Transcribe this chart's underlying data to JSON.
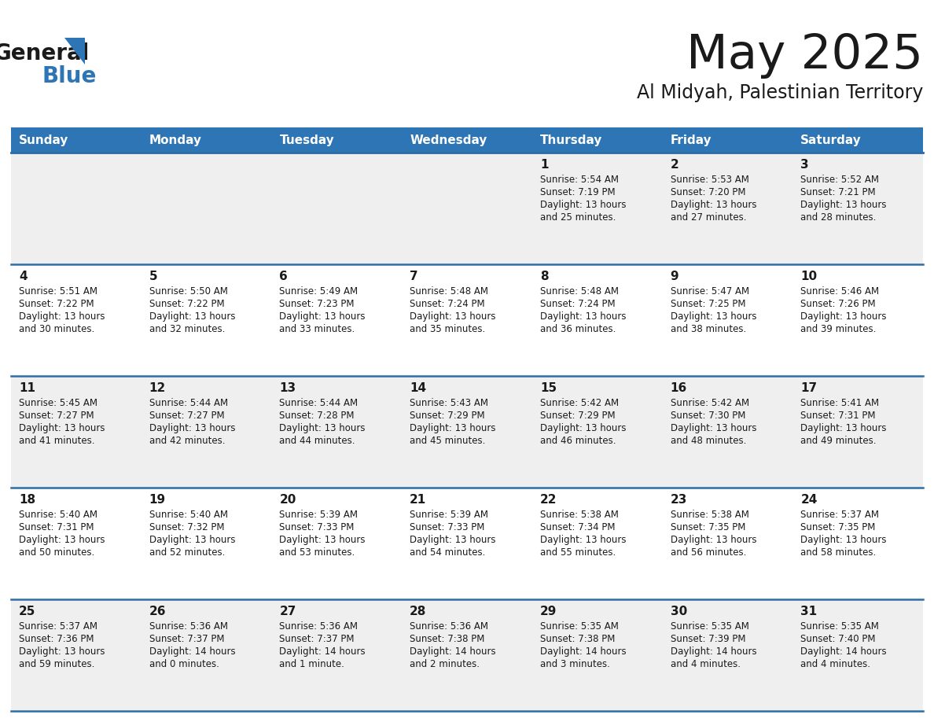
{
  "title": "May 2025",
  "subtitle": "Al Midyah, Palestinian Territory",
  "header_bg": "#2E75B6",
  "header_text_color": "#FFFFFF",
  "row_bg_odd": "#EFEFEF",
  "row_bg_even": "#FFFFFF",
  "separator_color": "#2E6DA4",
  "text_color": "#1a1a1a",
  "day_names": [
    "Sunday",
    "Monday",
    "Tuesday",
    "Wednesday",
    "Thursday",
    "Friday",
    "Saturday"
  ],
  "weeks": [
    [
      {
        "day": null
      },
      {
        "day": null
      },
      {
        "day": null
      },
      {
        "day": null
      },
      {
        "day": 1,
        "sunrise": "5:54 AM",
        "sunset": "7:19 PM",
        "daylight": "13 hours\nand 25 minutes."
      },
      {
        "day": 2,
        "sunrise": "5:53 AM",
        "sunset": "7:20 PM",
        "daylight": "13 hours\nand 27 minutes."
      },
      {
        "day": 3,
        "sunrise": "5:52 AM",
        "sunset": "7:21 PM",
        "daylight": "13 hours\nand 28 minutes."
      }
    ],
    [
      {
        "day": 4,
        "sunrise": "5:51 AM",
        "sunset": "7:22 PM",
        "daylight": "13 hours\nand 30 minutes."
      },
      {
        "day": 5,
        "sunrise": "5:50 AM",
        "sunset": "7:22 PM",
        "daylight": "13 hours\nand 32 minutes."
      },
      {
        "day": 6,
        "sunrise": "5:49 AM",
        "sunset": "7:23 PM",
        "daylight": "13 hours\nand 33 minutes."
      },
      {
        "day": 7,
        "sunrise": "5:48 AM",
        "sunset": "7:24 PM",
        "daylight": "13 hours\nand 35 minutes."
      },
      {
        "day": 8,
        "sunrise": "5:48 AM",
        "sunset": "7:24 PM",
        "daylight": "13 hours\nand 36 minutes."
      },
      {
        "day": 9,
        "sunrise": "5:47 AM",
        "sunset": "7:25 PM",
        "daylight": "13 hours\nand 38 minutes."
      },
      {
        "day": 10,
        "sunrise": "5:46 AM",
        "sunset": "7:26 PM",
        "daylight": "13 hours\nand 39 minutes."
      }
    ],
    [
      {
        "day": 11,
        "sunrise": "5:45 AM",
        "sunset": "7:27 PM",
        "daylight": "13 hours\nand 41 minutes."
      },
      {
        "day": 12,
        "sunrise": "5:44 AM",
        "sunset": "7:27 PM",
        "daylight": "13 hours\nand 42 minutes."
      },
      {
        "day": 13,
        "sunrise": "5:44 AM",
        "sunset": "7:28 PM",
        "daylight": "13 hours\nand 44 minutes."
      },
      {
        "day": 14,
        "sunrise": "5:43 AM",
        "sunset": "7:29 PM",
        "daylight": "13 hours\nand 45 minutes."
      },
      {
        "day": 15,
        "sunrise": "5:42 AM",
        "sunset": "7:29 PM",
        "daylight": "13 hours\nand 46 minutes."
      },
      {
        "day": 16,
        "sunrise": "5:42 AM",
        "sunset": "7:30 PM",
        "daylight": "13 hours\nand 48 minutes."
      },
      {
        "day": 17,
        "sunrise": "5:41 AM",
        "sunset": "7:31 PM",
        "daylight": "13 hours\nand 49 minutes."
      }
    ],
    [
      {
        "day": 18,
        "sunrise": "5:40 AM",
        "sunset": "7:31 PM",
        "daylight": "13 hours\nand 50 minutes."
      },
      {
        "day": 19,
        "sunrise": "5:40 AM",
        "sunset": "7:32 PM",
        "daylight": "13 hours\nand 52 minutes."
      },
      {
        "day": 20,
        "sunrise": "5:39 AM",
        "sunset": "7:33 PM",
        "daylight": "13 hours\nand 53 minutes."
      },
      {
        "day": 21,
        "sunrise": "5:39 AM",
        "sunset": "7:33 PM",
        "daylight": "13 hours\nand 54 minutes."
      },
      {
        "day": 22,
        "sunrise": "5:38 AM",
        "sunset": "7:34 PM",
        "daylight": "13 hours\nand 55 minutes."
      },
      {
        "day": 23,
        "sunrise": "5:38 AM",
        "sunset": "7:35 PM",
        "daylight": "13 hours\nand 56 minutes."
      },
      {
        "day": 24,
        "sunrise": "5:37 AM",
        "sunset": "7:35 PM",
        "daylight": "13 hours\nand 58 minutes."
      }
    ],
    [
      {
        "day": 25,
        "sunrise": "5:37 AM",
        "sunset": "7:36 PM",
        "daylight": "13 hours\nand 59 minutes."
      },
      {
        "day": 26,
        "sunrise": "5:36 AM",
        "sunset": "7:37 PM",
        "daylight": "14 hours\nand 0 minutes."
      },
      {
        "day": 27,
        "sunrise": "5:36 AM",
        "sunset": "7:37 PM",
        "daylight": "14 hours\nand 1 minute."
      },
      {
        "day": 28,
        "sunrise": "5:36 AM",
        "sunset": "7:38 PM",
        "daylight": "14 hours\nand 2 minutes."
      },
      {
        "day": 29,
        "sunrise": "5:35 AM",
        "sunset": "7:38 PM",
        "daylight": "14 hours\nand 3 minutes."
      },
      {
        "day": 30,
        "sunrise": "5:35 AM",
        "sunset": "7:39 PM",
        "daylight": "14 hours\nand 4 minutes."
      },
      {
        "day": 31,
        "sunrise": "5:35 AM",
        "sunset": "7:40 PM",
        "daylight": "14 hours\nand 4 minutes."
      }
    ]
  ]
}
